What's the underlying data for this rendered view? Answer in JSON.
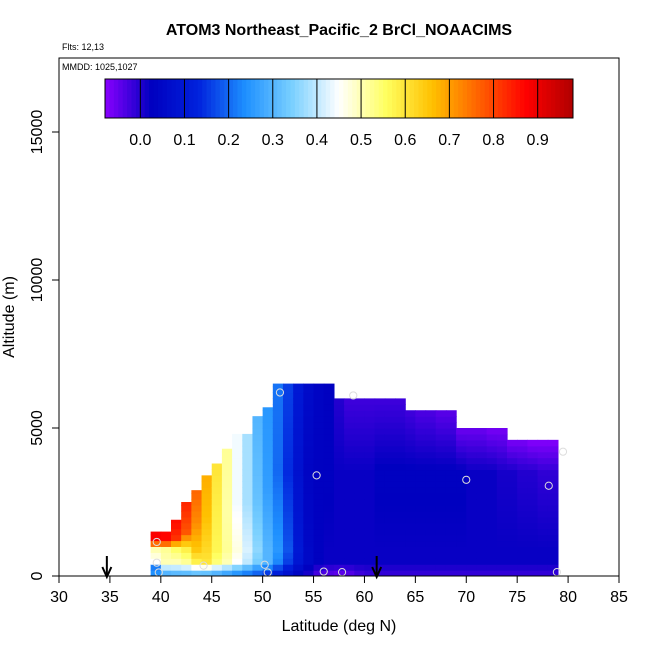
{
  "chart_data": {
    "type": "heatmap",
    "title": "ATOM3 Northeast_Pacific_2 BrCl_NOAACIMS",
    "annotations": {
      "flights": "Flts: 12,13",
      "dates": "MMDD: 1025,1027"
    },
    "xlabel": "Latitude (deg N)",
    "ylabel": "Altitude (m)",
    "xlim": [
      30,
      85
    ],
    "ylim": [
      0,
      17500
    ],
    "x_ticks": [
      30,
      35,
      40,
      45,
      50,
      55,
      60,
      65,
      70,
      75,
      80,
      85
    ],
    "y_ticks": [
      0,
      5000,
      10000,
      15000
    ],
    "colorbar": {
      "range": [
        -0.08,
        0.98
      ],
      "ticks": [
        0.0,
        0.1,
        0.2,
        0.3,
        0.4,
        0.5,
        0.6,
        0.7,
        0.8,
        0.9
      ],
      "tick_labels": [
        "0.0",
        "0.1",
        "0.2",
        "0.3",
        "0.4",
        "0.5",
        "0.6",
        "0.7",
        "0.8",
        "0.9"
      ],
      "colors": [
        "#8a00ff",
        "#0000c0",
        "#0022dd",
        "#1e90ff",
        "#7ad0ff",
        "#ffffff",
        "#ffff60",
        "#ffc000",
        "#ff6000",
        "#ff0000",
        "#b00000"
      ]
    },
    "column_width_deg": 1,
    "columns": [
      {
        "lat": 39.5,
        "top": 1500,
        "stops": [
          [
            0,
            0.25
          ],
          [
            300,
            0.22
          ],
          [
            500,
            0.45
          ],
          [
            900,
            0.5
          ],
          [
            1200,
            0.88
          ]
        ]
      },
      {
        "lat": 40.5,
        "top": 1500,
        "stops": [
          [
            0,
            0.25
          ],
          [
            500,
            0.5
          ],
          [
            900,
            0.52
          ],
          [
            1200,
            0.87
          ]
        ]
      },
      {
        "lat": 41.5,
        "top": 1900,
        "stops": [
          [
            0,
            0.26
          ],
          [
            500,
            0.5
          ],
          [
            900,
            0.55
          ],
          [
            1300,
            0.82
          ],
          [
            1800,
            0.86
          ]
        ]
      },
      {
        "lat": 42.5,
        "top": 2500,
        "stops": [
          [
            0,
            0.26
          ],
          [
            500,
            0.52
          ],
          [
            900,
            0.58
          ],
          [
            1500,
            0.78
          ],
          [
            2400,
            0.83
          ]
        ]
      },
      {
        "lat": 43.5,
        "top": 2900,
        "stops": [
          [
            0,
            0.26
          ],
          [
            500,
            0.58
          ],
          [
            900,
            0.65
          ],
          [
            1800,
            0.72
          ],
          [
            2800,
            0.76
          ]
        ]
      },
      {
        "lat": 44.5,
        "top": 3400,
        "stops": [
          [
            0,
            0.25
          ],
          [
            500,
            0.6
          ],
          [
            900,
            0.62
          ],
          [
            2000,
            0.66
          ],
          [
            3300,
            0.68
          ]
        ]
      },
      {
        "lat": 45.5,
        "top": 3800,
        "stops": [
          [
            0,
            0.24
          ],
          [
            500,
            0.54
          ],
          [
            900,
            0.57
          ],
          [
            2000,
            0.58
          ],
          [
            3700,
            0.6
          ]
        ]
      },
      {
        "lat": 46.5,
        "top": 4300,
        "stops": [
          [
            0,
            0.22
          ],
          [
            500,
            0.5
          ],
          [
            900,
            0.52
          ],
          [
            2200,
            0.51
          ],
          [
            4200,
            0.52
          ]
        ]
      },
      {
        "lat": 47.5,
        "top": 4800,
        "stops": [
          [
            0,
            0.2
          ],
          [
            500,
            0.45
          ],
          [
            900,
            0.47
          ],
          [
            2500,
            0.44
          ],
          [
            4700,
            0.44
          ]
        ]
      },
      {
        "lat": 48.5,
        "top": 4800,
        "stops": [
          [
            0,
            0.18
          ],
          [
            500,
            0.4
          ],
          [
            900,
            0.42
          ],
          [
            2500,
            0.38
          ],
          [
            4700,
            0.38
          ]
        ]
      },
      {
        "lat": 49.5,
        "top": 5400,
        "stops": [
          [
            0,
            0.16
          ],
          [
            500,
            0.34
          ],
          [
            900,
            0.36
          ],
          [
            2600,
            0.32
          ],
          [
            5300,
            0.3
          ]
        ]
      },
      {
        "lat": 50.5,
        "top": 5700,
        "stops": [
          [
            0,
            0.12
          ],
          [
            500,
            0.3
          ],
          [
            900,
            0.3
          ],
          [
            3000,
            0.26
          ],
          [
            5600,
            0.25
          ]
        ]
      },
      {
        "lat": 51.5,
        "top": 6500,
        "stops": [
          [
            0,
            0.09
          ],
          [
            500,
            0.23
          ],
          [
            900,
            0.25
          ],
          [
            3500,
            0.2
          ],
          [
            6400,
            0.21
          ]
        ]
      },
      {
        "lat": 52.5,
        "top": 6500,
        "stops": [
          [
            0,
            0.06
          ],
          [
            500,
            0.16
          ],
          [
            900,
            0.18
          ],
          [
            3500,
            0.14
          ],
          [
            6400,
            0.16
          ]
        ]
      },
      {
        "lat": 53.5,
        "top": 6500,
        "stops": [
          [
            0,
            0.03
          ],
          [
            500,
            0.09
          ],
          [
            900,
            0.1
          ],
          [
            3500,
            0.08
          ],
          [
            6400,
            0.1
          ]
        ]
      },
      {
        "lat": 54.5,
        "top": 6500,
        "stops": [
          [
            0,
            0.0
          ],
          [
            500,
            0.05
          ],
          [
            900,
            0.05
          ],
          [
            3500,
            0.04
          ],
          [
            6400,
            0.06
          ]
        ]
      },
      {
        "lat": 55.5,
        "top": 6500,
        "stops": [
          [
            0,
            -0.04
          ],
          [
            500,
            0.03
          ],
          [
            900,
            0.03
          ],
          [
            3500,
            0.03
          ],
          [
            6400,
            0.04
          ]
        ]
      },
      {
        "lat": 56.5,
        "top": 6500,
        "stops": [
          [
            0,
            -0.05
          ],
          [
            500,
            0.02
          ],
          [
            900,
            0.02
          ],
          [
            3500,
            0.03
          ],
          [
            6400,
            0.03
          ]
        ]
      },
      {
        "lat": 57.5,
        "top": 6000,
        "stops": [
          [
            0,
            -0.06
          ],
          [
            500,
            0.02
          ],
          [
            900,
            0.02
          ],
          [
            3500,
            0.02
          ],
          [
            5900,
            0.0
          ]
        ]
      },
      {
        "lat": 58.5,
        "top": 6000,
        "stops": [
          [
            0,
            -0.05
          ],
          [
            500,
            0.02
          ],
          [
            900,
            0.02
          ],
          [
            3500,
            0.02
          ],
          [
            5900,
            -0.02
          ]
        ]
      },
      {
        "lat": 59.5,
        "top": 6000,
        "stops": [
          [
            0,
            -0.03
          ],
          [
            500,
            0.02
          ],
          [
            900,
            0.02
          ],
          [
            3500,
            0.02
          ],
          [
            5900,
            -0.02
          ]
        ]
      },
      {
        "lat": 60.5,
        "top": 6000,
        "stops": [
          [
            0,
            -0.02
          ],
          [
            500,
            0.02
          ],
          [
            900,
            0.02
          ],
          [
            3500,
            0.02
          ],
          [
            5900,
            -0.02
          ]
        ]
      },
      {
        "lat": 61.5,
        "top": 6000,
        "stops": [
          [
            0,
            -0.02
          ],
          [
            500,
            0.02
          ],
          [
            900,
            0.02
          ],
          [
            3500,
            0.03
          ],
          [
            5900,
            -0.02
          ]
        ]
      },
      {
        "lat": 62.5,
        "top": 6000,
        "stops": [
          [
            0,
            -0.02
          ],
          [
            500,
            0.02
          ],
          [
            900,
            0.02
          ],
          [
            3500,
            0.03
          ],
          [
            5900,
            -0.02
          ]
        ]
      },
      {
        "lat": 63.5,
        "top": 6000,
        "stops": [
          [
            0,
            -0.02
          ],
          [
            500,
            0.02
          ],
          [
            900,
            0.02
          ],
          [
            3500,
            0.03
          ],
          [
            5900,
            -0.02
          ]
        ]
      },
      {
        "lat": 64.5,
        "top": 5600,
        "stops": [
          [
            0,
            -0.02
          ],
          [
            500,
            0.02
          ],
          [
            900,
            0.02
          ],
          [
            3500,
            0.03
          ],
          [
            5500,
            -0.02
          ]
        ]
      },
      {
        "lat": 65.5,
        "top": 5600,
        "stops": [
          [
            0,
            -0.02
          ],
          [
            500,
            0.02
          ],
          [
            900,
            0.02
          ],
          [
            3500,
            0.03
          ],
          [
            5500,
            -0.03
          ]
        ]
      },
      {
        "lat": 66.5,
        "top": 5600,
        "stops": [
          [
            0,
            -0.02
          ],
          [
            500,
            0.02
          ],
          [
            900,
            0.02
          ],
          [
            3500,
            0.03
          ],
          [
            5500,
            -0.03
          ]
        ]
      },
      {
        "lat": 67.5,
        "top": 5600,
        "stops": [
          [
            0,
            -0.02
          ],
          [
            500,
            0.02
          ],
          [
            900,
            0.02
          ],
          [
            3500,
            0.03
          ],
          [
            5500,
            -0.04
          ]
        ]
      },
      {
        "lat": 68.5,
        "top": 5600,
        "stops": [
          [
            0,
            -0.02
          ],
          [
            500,
            0.02
          ],
          [
            900,
            0.02
          ],
          [
            3500,
            0.03
          ],
          [
            5500,
            -0.04
          ]
        ]
      },
      {
        "lat": 69.5,
        "top": 5000,
        "stops": [
          [
            0,
            -0.02
          ],
          [
            500,
            0.02
          ],
          [
            900,
            0.02
          ],
          [
            3500,
            0.03
          ],
          [
            4900,
            -0.05
          ]
        ]
      },
      {
        "lat": 70.5,
        "top": 5000,
        "stops": [
          [
            0,
            -0.02
          ],
          [
            500,
            0.02
          ],
          [
            900,
            0.02
          ],
          [
            3500,
            0.02
          ],
          [
            4900,
            -0.05
          ]
        ]
      },
      {
        "lat": 71.5,
        "top": 5000,
        "stops": [
          [
            0,
            -0.02
          ],
          [
            500,
            0.02
          ],
          [
            900,
            0.02
          ],
          [
            3500,
            0.02
          ],
          [
            4900,
            -0.05
          ]
        ]
      },
      {
        "lat": 72.5,
        "top": 5000,
        "stops": [
          [
            0,
            -0.02
          ],
          [
            500,
            0.02
          ],
          [
            900,
            0.02
          ],
          [
            3500,
            0.02
          ],
          [
            4900,
            -0.06
          ]
        ]
      },
      {
        "lat": 73.5,
        "top": 5000,
        "stops": [
          [
            0,
            -0.02
          ],
          [
            500,
            0.02
          ],
          [
            900,
            0.02
          ],
          [
            3500,
            0.01
          ],
          [
            4900,
            -0.06
          ]
        ]
      },
      {
        "lat": 74.5,
        "top": 4600,
        "stops": [
          [
            0,
            -0.02
          ],
          [
            500,
            0.02
          ],
          [
            900,
            0.02
          ],
          [
            3500,
            0.01
          ],
          [
            4500,
            -0.06
          ]
        ]
      },
      {
        "lat": 75.5,
        "top": 4600,
        "stops": [
          [
            0,
            -0.02
          ],
          [
            500,
            0.02
          ],
          [
            900,
            0.02
          ],
          [
            3500,
            0.0
          ],
          [
            4500,
            -0.06
          ]
        ]
      },
      {
        "lat": 76.5,
        "top": 4600,
        "stops": [
          [
            0,
            -0.02
          ],
          [
            500,
            0.02
          ],
          [
            900,
            0.02
          ],
          [
            3500,
            0.0
          ],
          [
            4500,
            -0.07
          ]
        ]
      },
      {
        "lat": 77.5,
        "top": 4600,
        "stops": [
          [
            0,
            -0.02
          ],
          [
            500,
            0.02
          ],
          [
            900,
            0.02
          ],
          [
            3500,
            -0.01
          ],
          [
            4500,
            -0.07
          ]
        ]
      },
      {
        "lat": 78.5,
        "top": 4600,
        "stops": [
          [
            0,
            -0.02
          ],
          [
            500,
            0.02
          ],
          [
            900,
            0.02
          ],
          [
            3500,
            -0.01
          ],
          [
            4500,
            -0.07
          ]
        ]
      }
    ],
    "observations": [
      {
        "lat": 39.6,
        "alt": 1150
      },
      {
        "lat": 39.6,
        "alt": 450
      },
      {
        "lat": 39.8,
        "alt": 120
      },
      {
        "lat": 44.2,
        "alt": 350
      },
      {
        "lat": 50.2,
        "alt": 380
      },
      {
        "lat": 50.5,
        "alt": 120
      },
      {
        "lat": 51.7,
        "alt": 6200
      },
      {
        "lat": 55.3,
        "alt": 3400
      },
      {
        "lat": 56.0,
        "alt": 150
      },
      {
        "lat": 57.8,
        "alt": 130
      },
      {
        "lat": 58.9,
        "alt": 6100
      },
      {
        "lat": 70.0,
        "alt": 3250
      },
      {
        "lat": 78.1,
        "alt": 3050
      },
      {
        "lat": 78.9,
        "alt": 130
      },
      {
        "lat": 79.5,
        "alt": 4200
      }
    ],
    "markers": [
      {
        "lat": 34.7,
        "type": "down-arrow"
      },
      {
        "lat": 61.2,
        "type": "down-arrow"
      }
    ]
  }
}
